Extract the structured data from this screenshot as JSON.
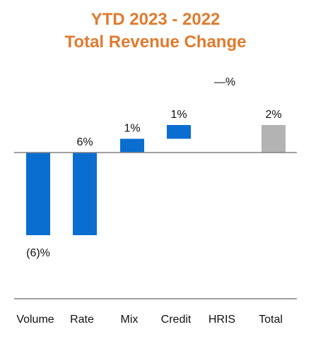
{
  "chart_data": {
    "type": "bar",
    "subtype": "waterfall",
    "title": "YTD 2023 - 2022",
    "subtitle": "Total Revenue Change",
    "categories": [
      "Volume",
      "Rate",
      "Mix",
      "Credit",
      "HRIS",
      "Total"
    ],
    "values": [
      -6,
      6,
      1,
      1,
      0,
      2
    ],
    "value_labels": [
      "(6)%",
      "6%",
      "1%",
      "1%",
      "—%",
      "2%"
    ],
    "unit": "%",
    "bar_colors": [
      "#0A6ED1",
      "#0A6ED1",
      "#0A6ED1",
      "#0A6ED1",
      "#0A6ED1",
      "#B3B3B3"
    ],
    "ylim": [
      -9.5,
      4
    ],
    "grid": false,
    "legend": "none"
  },
  "colors": {
    "title": "#E07B2E",
    "bar": "#0A6ED1",
    "total_bar": "#B3B3B3",
    "axis": "#808080"
  }
}
